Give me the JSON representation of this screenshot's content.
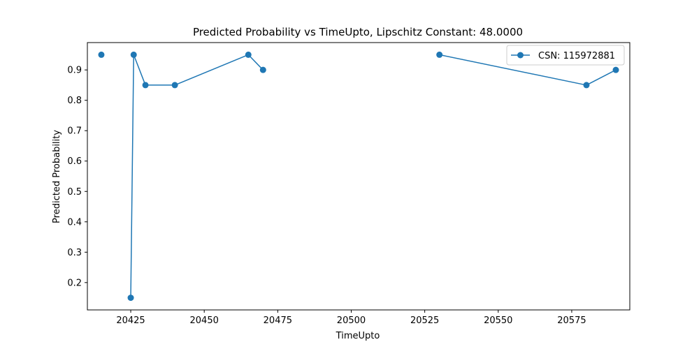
{
  "chart_data": {
    "type": "line",
    "title": "Predicted Probability vs TimeUpto, Lipschitz Constant: 48.0000",
    "xlabel": "TimeUpto",
    "ylabel": "Predicted Probability",
    "xlim": [
      20410.25,
      20594.75
    ],
    "ylim": [
      0.11,
      0.99
    ],
    "xticks": [
      20425,
      20450,
      20475,
      20500,
      20525,
      20550,
      20575
    ],
    "yticks": [
      0.2,
      0.3,
      0.4,
      0.5,
      0.6,
      0.7,
      0.8,
      0.9
    ],
    "grid": false,
    "legend_position": "top-right",
    "series": [
      {
        "name": "CSN: 115972881",
        "color": "#1f77b4",
        "marker": "circle",
        "x": [
          20415,
          20425,
          20426,
          20430,
          20440,
          20465,
          20470,
          20530,
          20580,
          20590
        ],
        "y": [
          0.95,
          0.15,
          0.95,
          0.85,
          0.85,
          0.95,
          0.9,
          0.95,
          0.85,
          0.9
        ],
        "connected": [
          false,
          true,
          true,
          true,
          true,
          true,
          false,
          true,
          true
        ]
      }
    ]
  }
}
